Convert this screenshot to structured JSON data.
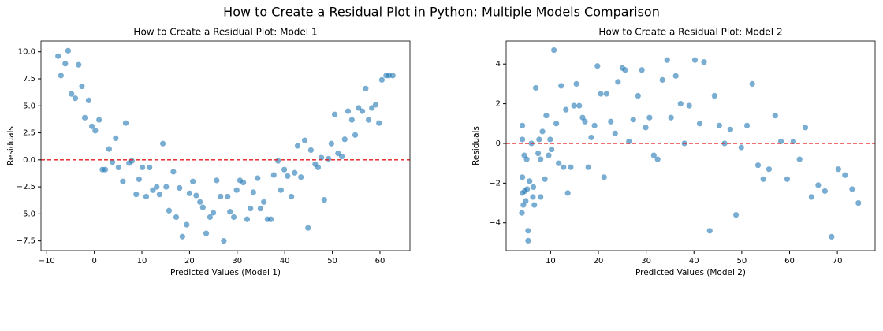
{
  "title": "How to Create a Residual Plot in Python: Multiple Models Comparison",
  "chart_data": [
    {
      "type": "scatter",
      "title": "How to Create a Residual Plot: Model 1",
      "x_label": "Predicted Values (Model 1)",
      "y_label": "Residuals",
      "color": "#1f77b4",
      "reference_line": {
        "value": 0,
        "color": "#e41a1c"
      },
      "xlim": [
        -11.2,
        66.3
      ],
      "ylim": [
        -8.4,
        11.0
      ],
      "xticks": [
        {
          "value": -10,
          "label": "−10"
        },
        0,
        10,
        20,
        30,
        40,
        50,
        60
      ],
      "yticks": [
        {
          "value": 10,
          "label": "10.0"
        },
        7.5,
        {
          "value": 5,
          "label": "5.0"
        },
        2.5,
        {
          "value": 0,
          "label": "0.0"
        },
        {
          "value": -2.5,
          "label": "−2.5"
        },
        {
          "value": -5,
          "label": "−5.0"
        },
        {
          "value": -7.5,
          "label": "−7.5"
        }
      ],
      "x": [
        -7.6,
        -7,
        -6.1,
        -5.5,
        -4.8,
        -4,
        -3.3,
        -2.6,
        -2,
        -1.2,
        -0.5,
        0.2,
        1,
        1.7,
        2.3,
        3.1,
        3.8,
        4.5,
        5.1,
        6,
        6.6,
        7.3,
        7.9,
        8.8,
        9.4,
        10.1,
        10.9,
        11.6,
        12.3,
        13.1,
        13.7,
        14.4,
        15.1,
        15.7,
        16.6,
        17.2,
        17.9,
        18.5,
        19.4,
        20,
        20.7,
        21.4,
        22.2,
        22.8,
        23.5,
        24.3,
        25,
        25.7,
        26.5,
        27.2,
        28,
        28.5,
        29.3,
        29.9,
        30.6,
        31.3,
        32.1,
        32.8,
        33.4,
        34.3,
        34.9,
        35.6,
        36.4,
        37.1,
        37.7,
        38.6,
        39.2,
        39.9,
        40.6,
        41.4,
        42.1,
        42.7,
        43.4,
        44.2,
        44.9,
        45.5,
        46.4,
        47,
        47.7,
        48.3,
        49.2,
        49.8,
        50.5,
        51.2,
        52,
        52.6,
        53.3,
        54.1,
        54.8,
        55.5,
        56.3,
        57,
        57.6,
        58.3,
        59.1,
        59.8,
        60.4,
        61.3,
        61.9,
        62.7
      ],
      "values": [
        9.6,
        7.8,
        8.9,
        10.1,
        6.1,
        5.7,
        8.8,
        6.8,
        3.9,
        5.5,
        3.1,
        2.7,
        3.7,
        -0.9,
        -0.9,
        1,
        -0.2,
        2,
        -0.7,
        -2,
        3.4,
        -0.3,
        -0.1,
        -3.2,
        -1.8,
        -0.7,
        -3.4,
        -0.7,
        -2.8,
        -2.5,
        -3.2,
        1.5,
        -2.5,
        -4.7,
        -1.1,
        -5.3,
        -2.6,
        -7.1,
        -6,
        -3.1,
        -2,
        -3.3,
        -3.9,
        -4.4,
        -6.8,
        -5.3,
        -4.9,
        -1.9,
        -3.4,
        -7.5,
        -3.4,
        -4.8,
        -5.3,
        -2.8,
        -1.9,
        -2.1,
        -5.5,
        -4.5,
        -3,
        -1.7,
        -4.5,
        -3.9,
        -5.5,
        -5.5,
        -1.4,
        -0.1,
        -2.8,
        -0.9,
        -1.5,
        -3.4,
        -1.2,
        1.3,
        -1.6,
        1.8,
        -6.3,
        0.9,
        -0.4,
        -0.7,
        0.2,
        -3.7,
        0.1,
        1.5,
        4.2,
        0.6,
        0.3,
        1.9,
        4.5,
        3.7,
        2.3,
        4.8,
        4.5,
        6.6,
        3.7,
        4.8,
        5.1,
        3.4,
        7.4,
        7.8,
        7.8,
        7.8
      ]
    },
    {
      "type": "scatter",
      "title": "How to Create a Residual Plot: Model 2",
      "x_label": "Predicted Values (Model 2)",
      "y_label": "Residuals",
      "color": "#1f77b4",
      "reference_line": {
        "value": 0,
        "color": "#e41a1c"
      },
      "xlim": [
        0.7,
        77.9
      ],
      "ylim": [
        -5.4,
        5.16
      ],
      "xticks": [
        10,
        20,
        30,
        40,
        50,
        60,
        70
      ],
      "yticks": [
        4,
        2,
        0,
        {
          "value": -2,
          "label": "−2"
        },
        {
          "value": -4,
          "label": "−4"
        }
      ],
      "x": [
        4,
        4.1,
        4.1,
        4.1,
        4.1,
        4.3,
        4.5,
        4.6,
        4.8,
        5,
        5.1,
        5.3,
        5.3,
        5.6,
        6,
        6.3,
        6.4,
        6.6,
        6.9,
        7.4,
        7.6,
        7.9,
        7.9,
        8.3,
        8.8,
        9.1,
        9.6,
        9.9,
        10.2,
        10.7,
        11.2,
        11.7,
        12.2,
        12.7,
        13.2,
        13.6,
        14.2,
        14.9,
        15.4,
        16,
        16.7,
        17.2,
        17.9,
        18.5,
        19.2,
        19.8,
        20.5,
        21.2,
        21.7,
        22.6,
        23.5,
        24.1,
        25,
        25.6,
        26.4,
        27.3,
        28.3,
        29.1,
        29.9,
        30.7,
        31.6,
        32.4,
        33.4,
        34.4,
        35.2,
        36.2,
        37.2,
        38,
        39,
        40.2,
        41.2,
        42.1,
        43.3,
        44.3,
        45.3,
        46.4,
        47.6,
        48.8,
        49.9,
        51.1,
        52.2,
        53.4,
        54.5,
        55.7,
        57,
        58.2,
        59.5,
        60.8,
        62.1,
        63.3,
        64.6,
        66,
        67.4,
        68.8,
        70.2,
        71.6,
        73.1,
        74.4
      ],
      "values": [
        -3.5,
        0.9,
        0.2,
        -1.7,
        -2.5,
        -3.1,
        -0.6,
        -2.4,
        -2.9,
        -0.8,
        -2.3,
        -4.4,
        -4.9,
        -1.9,
        0,
        -2.7,
        -2.2,
        -3.1,
        2.8,
        -0.5,
        0.2,
        -0.8,
        -2.7,
        0.6,
        -1.8,
        1.4,
        -0.6,
        0.2,
        -0.3,
        4.7,
        1,
        -1,
        2.9,
        -1.2,
        1.7,
        -2.5,
        -1.2,
        1.9,
        3,
        1.9,
        1.3,
        1.1,
        -1.2,
        0.3,
        0.9,
        3.9,
        2.5,
        -1.7,
        2.5,
        1.1,
        0.5,
        3.1,
        3.8,
        3.7,
        0.1,
        1.2,
        2.4,
        3.7,
        0.8,
        1.3,
        -0.6,
        -0.8,
        3.2,
        4.2,
        1.3,
        3.4,
        2,
        0,
        1.9,
        4.2,
        1,
        4.1,
        -4.4,
        2.4,
        0.9,
        0,
        0.7,
        -3.6,
        -0.2,
        0.9,
        3,
        -1.1,
        -1.8,
        -1.3,
        1.4,
        0.1,
        -1.8,
        0.1,
        -0.8,
        0.8,
        -2.7,
        -2.1,
        -2.4,
        -4.7,
        -1.3,
        -1.6,
        -2.3,
        -3
      ]
    }
  ]
}
